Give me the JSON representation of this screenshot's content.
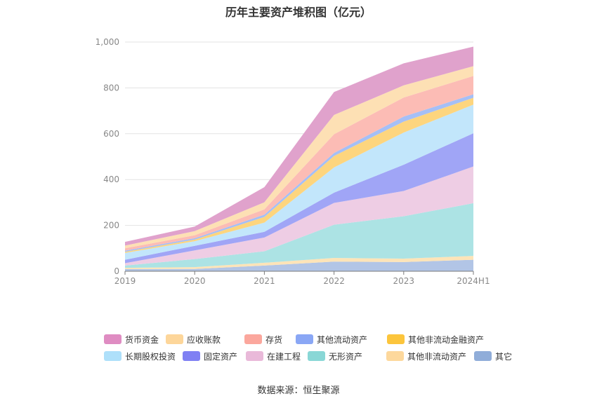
{
  "title": "历年主要资产堆积图（亿元）",
  "source_note": "数据来源：恒生聚源",
  "chart_data": {
    "type": "area",
    "stacked": true,
    "categories": [
      "2019",
      "2020",
      "2021",
      "2022",
      "2023",
      "2024H1"
    ],
    "ylim": [
      0,
      1000
    ],
    "yticks": [
      0,
      200,
      400,
      600,
      800,
      1000
    ],
    "ytick_labels": [
      "0",
      "200",
      "400",
      "600",
      "800",
      "1,000"
    ],
    "grid": true,
    "legend_position": "bottom",
    "series": [
      {
        "name": "货币资金",
        "color": "#e0a2cc",
        "values": [
          16,
          20,
          66,
          100,
          96,
          85
        ]
      },
      {
        "name": "应收账款",
        "color": "#fde0b4",
        "values": [
          12,
          18,
          31,
          84,
          53,
          43
        ]
      },
      {
        "name": "存货",
        "color": "#fcbcb5",
        "values": [
          10,
          13,
          23,
          82,
          83,
          80
        ]
      },
      {
        "name": "其他流动资产",
        "color": "#a5bff6",
        "values": [
          5,
          6,
          10,
          13,
          22,
          15
        ]
      },
      {
        "name": "其他非流动金融资产",
        "color": "#fdd57e",
        "values": [
          5,
          7,
          25,
          50,
          48,
          30
        ]
      },
      {
        "name": "长期股权投资",
        "color": "#c2e6fb",
        "values": [
          30,
          20,
          40,
          110,
          140,
          125
        ]
      },
      {
        "name": "固定资产",
        "color": "#a0a5f6",
        "values": [
          15,
          20,
          25,
          45,
          115,
          145
        ]
      },
      {
        "name": "在建工程",
        "color": "#eecde4",
        "values": [
          10,
          38,
          60,
          95,
          110,
          160
        ]
      },
      {
        "name": "无形资产",
        "color": "#ace3e4",
        "values": [
          10,
          35,
          50,
          145,
          185,
          230
        ]
      },
      {
        "name": "其他非流动资产",
        "color": "#fde4b8",
        "values": [
          6,
          8,
          12,
          16,
          15,
          17
        ]
      },
      {
        "name": "其它",
        "color": "#b2c5e6",
        "values": [
          9,
          10,
          25,
          42,
          40,
          50
        ]
      }
    ],
    "legend_order": [
      "货币资金",
      "应收账款",
      "存货",
      "其他流动资产",
      "其他非流动金融资产",
      "长期股权投资",
      "固定资产",
      "在建工程",
      "无形资产",
      "其他非流动资产",
      "其它"
    ],
    "legend_colors": [
      "#df8cc2",
      "#fdd69a",
      "#fba79d",
      "#8aa7f5",
      "#fcc53c",
      "#aee0fa",
      "#7f80f3",
      "#e9b9d9",
      "#89d7d6",
      "#fdd89c",
      "#90add9"
    ]
  }
}
